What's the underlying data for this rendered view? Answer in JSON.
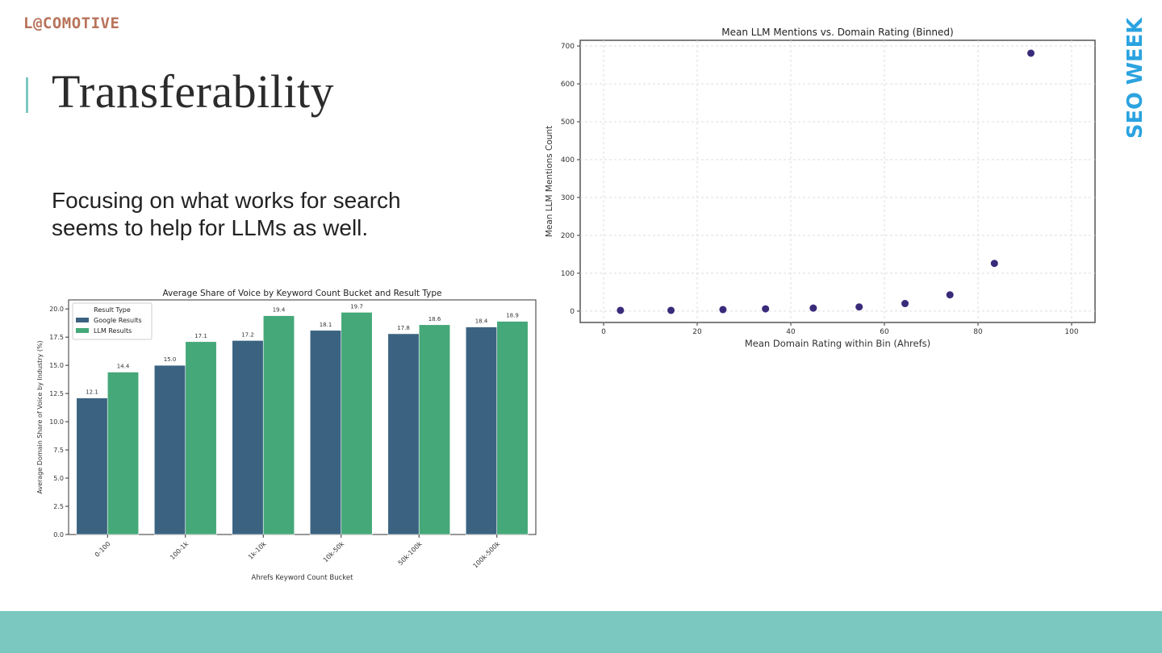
{
  "header": {
    "logo_text": "L@COMOTIVE",
    "title": "Transferability",
    "subtitle": "Focusing on what works for search seems to help for LLMs as well.",
    "brand": "SEO WEEK"
  },
  "colors": {
    "accent": "#7bc8c1",
    "logo": "#b8735a",
    "brand": "#2ba3e0",
    "google_bar": "#3b6381",
    "llm_bar": "#45a878",
    "scatter_point": "#3a2a7a"
  },
  "chart_data": [
    {
      "type": "bar",
      "title": "Average Share of Voice by Keyword Count Bucket and Result Type",
      "xlabel": "Ahrefs Keyword Count Bucket",
      "ylabel": "Average Domain Share of Voice by Industry (%)",
      "ylim": [
        0,
        20.8
      ],
      "yticks": [
        "0.0",
        "2.5",
        "5.0",
        "7.5",
        "10.0",
        "12.5",
        "15.0",
        "17.5",
        "20.0"
      ],
      "legend_title": "Result Type",
      "legend_placement": "top-left",
      "categories": [
        "0-100",
        "100-1k",
        "1k-10k",
        "10k-50k",
        "50k-100k",
        "100k-500k"
      ],
      "series": [
        {
          "name": "Google Results",
          "values": [
            12.1,
            15.0,
            17.2,
            18.1,
            17.8,
            18.4
          ],
          "labels": [
            "12.1",
            "15.0",
            "17.2",
            "18.1",
            "17.8",
            "18.4"
          ]
        },
        {
          "name": "LLM Results",
          "values": [
            14.4,
            17.1,
            19.4,
            19.7,
            18.6,
            18.9
          ],
          "labels": [
            "14.4",
            "17.1",
            "19.4",
            "19.7",
            "18.6",
            "18.9"
          ]
        }
      ]
    },
    {
      "type": "scatter",
      "title": "Mean LLM Mentions vs. Domain Rating (Binned)",
      "xlabel": "Mean Domain Rating within Bin (Ahrefs)",
      "ylabel": "Mean LLM Mentions Count",
      "xlim": [
        -5,
        105
      ],
      "ylim": [
        -30,
        715
      ],
      "xticks": [
        "0",
        "20",
        "40",
        "60",
        "80",
        "100"
      ],
      "yticks": [
        "0",
        "100",
        "200",
        "300",
        "400",
        "500",
        "600",
        "700"
      ],
      "grid": true,
      "x": [
        3.6,
        14.4,
        25.5,
        34.6,
        44.8,
        54.6,
        64.4,
        74.0,
        83.5,
        91.3
      ],
      "y": [
        2,
        2,
        4,
        6,
        8,
        11,
        20,
        43,
        126,
        681
      ]
    }
  ]
}
